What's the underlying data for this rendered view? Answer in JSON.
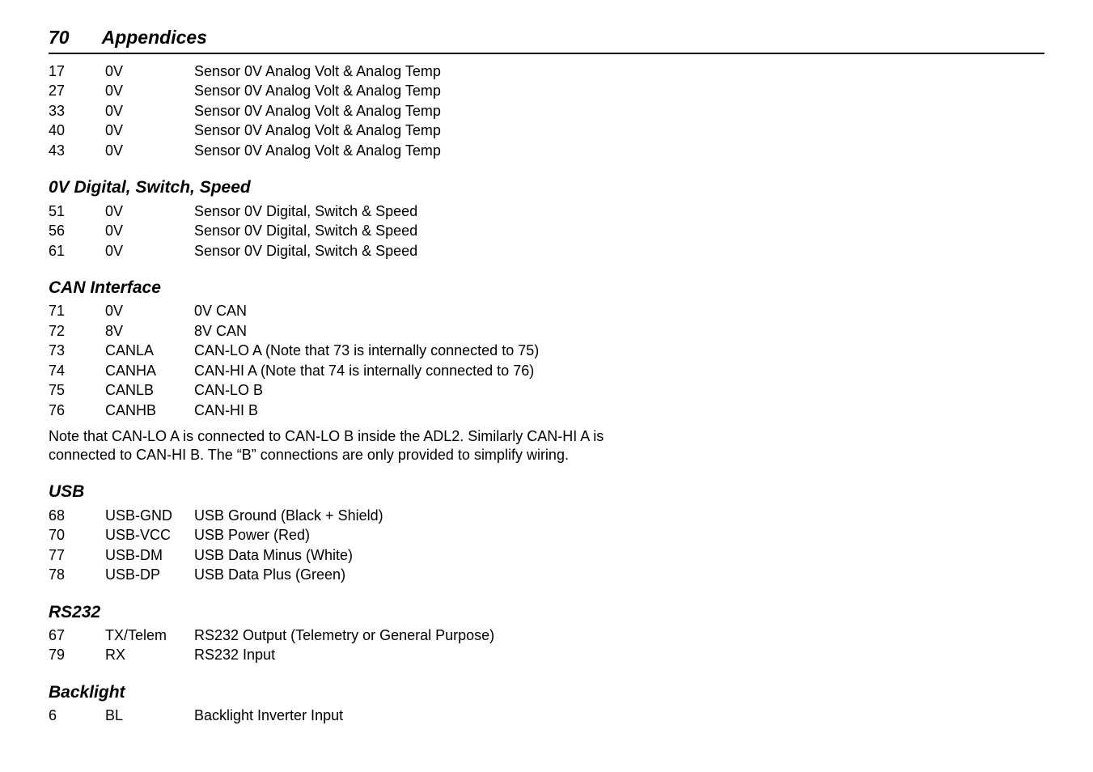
{
  "header": {
    "page_number": "70",
    "title": "Appendices"
  },
  "sections": {
    "top_rows": [
      {
        "pin": "17",
        "sig": "0V",
        "desc": "Sensor 0V Analog Volt & Analog Temp"
      },
      {
        "pin": "27",
        "sig": "0V",
        "desc": "Sensor 0V Analog Volt & Analog Temp"
      },
      {
        "pin": "33",
        "sig": "0V",
        "desc": "Sensor 0V Analog Volt & Analog Temp"
      },
      {
        "pin": "40",
        "sig": "0V",
        "desc": "Sensor 0V Analog Volt & Analog Temp"
      },
      {
        "pin": "43",
        "sig": "0V",
        "desc": "Sensor 0V Analog Volt & Analog Temp"
      }
    ],
    "digital": {
      "heading": "0V Digital, Switch, Speed",
      "rows": [
        {
          "pin": "51",
          "sig": "0V",
          "desc": "Sensor 0V Digital, Switch & Speed"
        },
        {
          "pin": "56",
          "sig": "0V",
          "desc": "Sensor 0V Digital, Switch & Speed"
        },
        {
          "pin": "61",
          "sig": "0V",
          "desc": "Sensor 0V Digital, Switch & Speed"
        }
      ]
    },
    "can": {
      "heading": "CAN Interface",
      "rows": [
        {
          "pin": "71",
          "sig": "0V",
          "desc": "0V CAN"
        },
        {
          "pin": "72",
          "sig": "8V",
          "desc": "8V CAN"
        },
        {
          "pin": "73",
          "sig": "CANLA",
          "desc": "CAN-LO A  (Note that 73 is internally connected to 75)"
        },
        {
          "pin": "74",
          "sig": "CANHA",
          "desc": "CAN-HI A   (Note that 74 is internally connected to 76)"
        },
        {
          "pin": "75",
          "sig": "CANLB",
          "desc": "CAN-LO B"
        },
        {
          "pin": "76",
          "sig": "CANHB",
          "desc": "CAN-HI B"
        }
      ],
      "note": "Note that CAN-LO A is connected to CAN-LO B inside the ADL2. Similarly CAN-HI A is connected to CAN-HI B. The “B” connections are only provided to simplify wiring."
    },
    "usb": {
      "heading": "USB",
      "rows": [
        {
          "pin": "68",
          "sig": "USB-GND",
          "desc": "USB Ground (Black + Shield)"
        },
        {
          "pin": "70",
          "sig": "USB-VCC",
          "desc": "USB Power (Red)"
        },
        {
          "pin": "77",
          "sig": "USB-DM",
          "desc": "USB Data Minus (White)"
        },
        {
          "pin": "78",
          "sig": "USB-DP",
          "desc": "USB Data Plus (Green)"
        }
      ]
    },
    "rs232": {
      "heading": "RS232",
      "rows": [
        {
          "pin": "67",
          "sig": "TX/Telem",
          "desc": "RS232 Output (Telemetry or General Purpose)"
        },
        {
          "pin": "79",
          "sig": "RX",
          "desc": "RS232 Input"
        }
      ]
    },
    "backlight": {
      "heading": "Backlight",
      "rows": [
        {
          "pin": "6",
          "sig": "BL",
          "desc": "Backlight Inverter Input"
        }
      ]
    }
  }
}
